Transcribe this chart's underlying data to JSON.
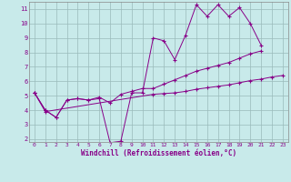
{
  "xlabel": "Windchill (Refroidissement éolien,°C)",
  "bg_color": "#c8eaea",
  "grid_color": "#9ababa",
  "line_color": "#880088",
  "tick_color": "#880088",
  "x_values": [
    0,
    1,
    2,
    3,
    4,
    5,
    6,
    7,
    8,
    9,
    10,
    11,
    12,
    13,
    14,
    15,
    16,
    17,
    18,
    19,
    20,
    21,
    22,
    23
  ],
  "line1": [
    5.2,
    4.0,
    3.5,
    4.7,
    4.8,
    4.7,
    4.8,
    1.75,
    1.85,
    5.2,
    5.2,
    9.0,
    8.8,
    7.5,
    9.2,
    11.3,
    10.5,
    11.3,
    10.5,
    11.1,
    10.0,
    8.5,
    null,
    null
  ],
  "line2": [
    5.2,
    4.0,
    3.5,
    4.7,
    4.8,
    4.7,
    4.9,
    4.5,
    5.1,
    5.3,
    5.5,
    5.5,
    5.8,
    6.1,
    6.4,
    6.7,
    6.9,
    7.1,
    7.3,
    7.6,
    7.9,
    8.1,
    null,
    null
  ],
  "line3": [
    5.2,
    3.9,
    null,
    null,
    null,
    null,
    null,
    null,
    null,
    null,
    null,
    5.1,
    5.15,
    5.2,
    5.3,
    5.45,
    5.55,
    5.65,
    5.75,
    5.9,
    6.05,
    6.15,
    6.3,
    6.4
  ],
  "ylim": [
    1.8,
    11.5
  ],
  "xlim": [
    -0.5,
    23.5
  ],
  "yticks": [
    2,
    3,
    4,
    5,
    6,
    7,
    8,
    9,
    10,
    11
  ],
  "xticks": [
    0,
    1,
    2,
    3,
    4,
    5,
    6,
    7,
    8,
    9,
    10,
    11,
    12,
    13,
    14,
    15,
    16,
    17,
    18,
    19,
    20,
    21,
    22,
    23
  ]
}
